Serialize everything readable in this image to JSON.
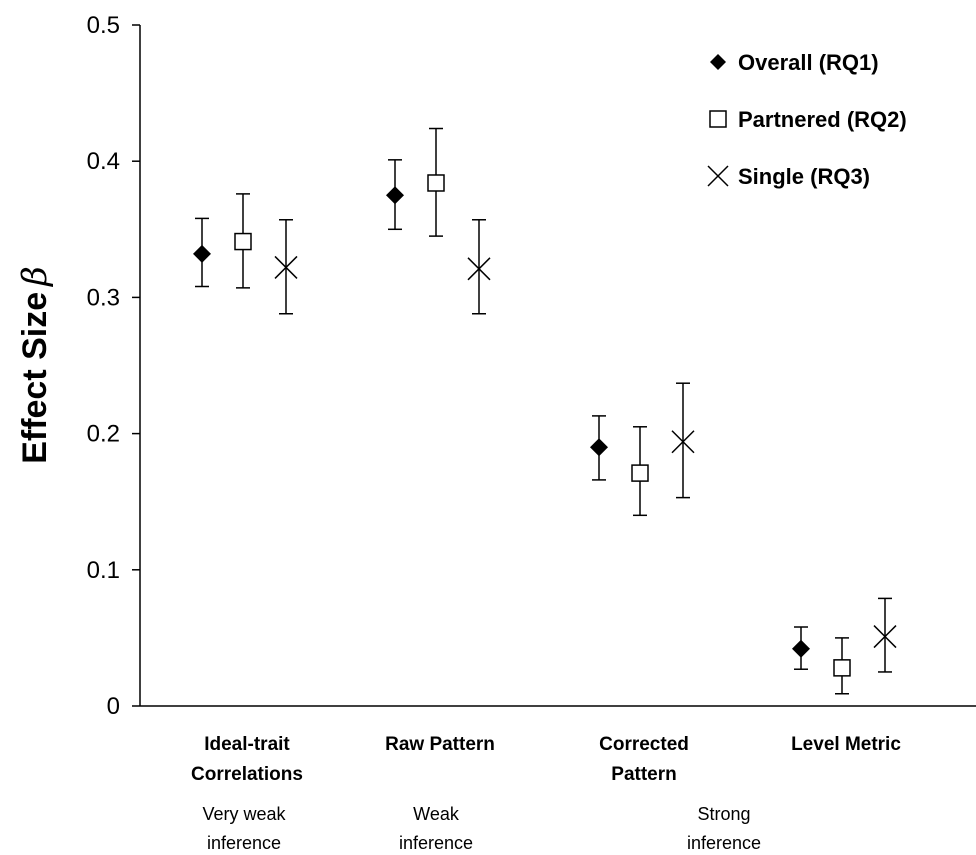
{
  "chart_data": {
    "type": "scatter",
    "ylabel": "Effect Size",
    "ylabel_symbol": "β",
    "ylim": [
      0,
      0.5
    ],
    "yticks": [
      "0",
      "0.1",
      "0.2",
      "0.3",
      "0.4",
      "0.5"
    ],
    "yticks_values": [
      0,
      0.1,
      0.2,
      0.3,
      0.4,
      0.5
    ],
    "grid": false,
    "legend_position": "top-right",
    "categories": [
      [
        "Ideal-trait",
        "Correlations"
      ],
      [
        "Raw Pattern"
      ],
      [
        "Corrected",
        "Pattern"
      ],
      [
        "Level Metric"
      ]
    ],
    "inference_labels": [
      [
        "Very weak",
        "inference"
      ],
      [
        "Weak",
        "inference"
      ],
      [
        "Strong",
        "inference"
      ]
    ],
    "series": [
      {
        "name": "Overall (RQ1)",
        "marker": "diamond",
        "values": [
          0.332,
          0.375,
          0.19,
          0.042
        ],
        "lower": [
          0.308,
          0.35,
          0.166,
          0.027
        ],
        "upper": [
          0.358,
          0.401,
          0.213,
          0.058
        ]
      },
      {
        "name": "Partnered (RQ2)",
        "marker": "square",
        "values": [
          0.341,
          0.384,
          0.171,
          0.028
        ],
        "lower": [
          0.307,
          0.345,
          0.14,
          0.009
        ],
        "upper": [
          0.376,
          0.424,
          0.205,
          0.05
        ]
      },
      {
        "name": "Single (RQ3)",
        "marker": "x",
        "values": [
          0.322,
          0.321,
          0.194,
          0.051
        ],
        "lower": [
          0.288,
          0.288,
          0.153,
          0.025
        ],
        "upper": [
          0.357,
          0.357,
          0.237,
          0.079
        ]
      }
    ]
  }
}
